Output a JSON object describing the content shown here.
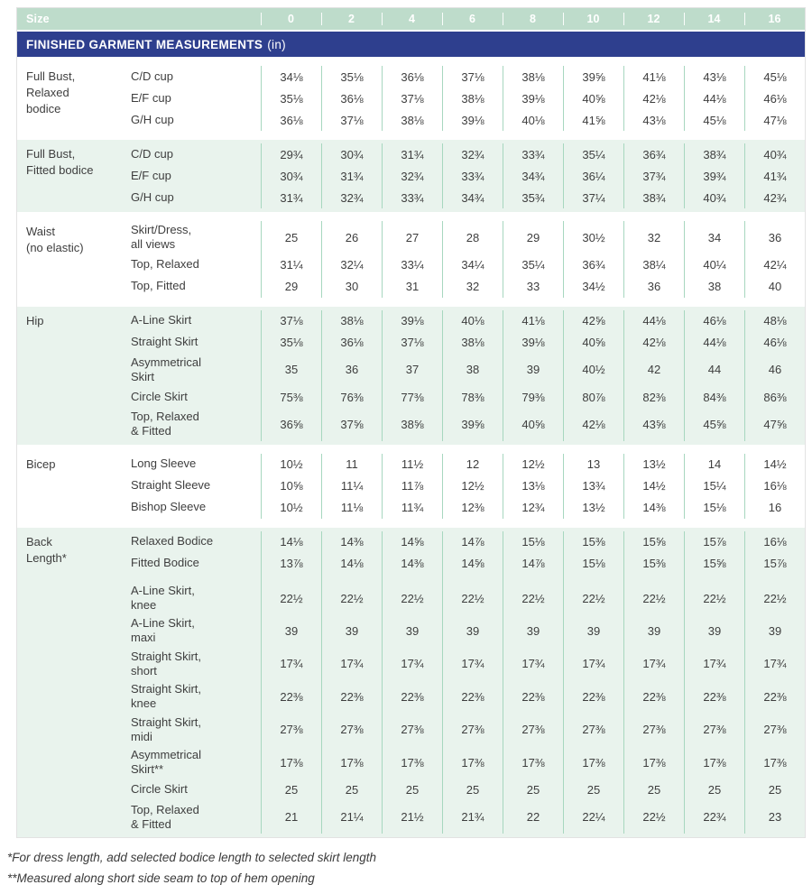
{
  "header": {
    "label": "Size",
    "sizes": [
      "0",
      "2",
      "4",
      "6",
      "8",
      "10",
      "12",
      "14",
      "16"
    ]
  },
  "banner": {
    "title": "FINISHED GARMENT MEASUREMENTS",
    "unit": "(in)"
  },
  "sections": [
    {
      "id": "full-bust-relaxed",
      "label": "Full Bust,\nRelaxed\nbodice",
      "tint": false,
      "rows": [
        {
          "label": "C/D cup",
          "values": [
            "34⅛",
            "35⅛",
            "36⅛",
            "37⅛",
            "38⅛",
            "39⅝",
            "41⅛",
            "43⅛",
            "45⅛"
          ]
        },
        {
          "label": "E/F cup",
          "values": [
            "35⅛",
            "36⅛",
            "37⅛",
            "38⅛",
            "39⅛",
            "40⅝",
            "42⅛",
            "44⅛",
            "46⅛"
          ]
        },
        {
          "label": "G/H cup",
          "values": [
            "36⅛",
            "37⅛",
            "38⅛",
            "39⅛",
            "40⅛",
            "41⅝",
            "43⅛",
            "45⅛",
            "47⅛"
          ]
        }
      ]
    },
    {
      "id": "full-bust-fitted",
      "label": "Full Bust,\nFitted bodice",
      "tint": true,
      "rows": [
        {
          "label": "C/D cup",
          "values": [
            "29¾",
            "30¾",
            "31¾",
            "32¾",
            "33¾",
            "35¼",
            "36¾",
            "38¾",
            "40¾"
          ]
        },
        {
          "label": "E/F cup",
          "values": [
            "30¾",
            "31¾",
            "32¾",
            "33¾",
            "34¾",
            "36¼",
            "37¾",
            "39¾",
            "41¾"
          ]
        },
        {
          "label": "G/H cup",
          "values": [
            "31¾",
            "32¾",
            "33¾",
            "34¾",
            "35¾",
            "37¼",
            "38¾",
            "40¾",
            "42¾"
          ]
        }
      ]
    },
    {
      "id": "waist",
      "label": "Waist\n(no elastic)",
      "tint": false,
      "rows": [
        {
          "label": "Skirt/Dress,\nall views",
          "values": [
            "25",
            "26",
            "27",
            "28",
            "29",
            "30½",
            "32",
            "34",
            "36"
          ]
        },
        {
          "label": "Top, Relaxed",
          "values": [
            "31¼",
            "32¼",
            "33¼",
            "34¼",
            "35¼",
            "36¾",
            "38¼",
            "40¼",
            "42¼"
          ]
        },
        {
          "label": "Top, Fitted",
          "values": [
            "29",
            "30",
            "31",
            "32",
            "33",
            "34½",
            "36",
            "38",
            "40"
          ]
        }
      ]
    },
    {
      "id": "hip",
      "label": "Hip",
      "tint": true,
      "rows": [
        {
          "label": "A-Line Skirt",
          "values": [
            "37⅛",
            "38⅛",
            "39⅛",
            "40⅛",
            "41⅛",
            "42⅝",
            "44⅛",
            "46⅛",
            "48⅛"
          ]
        },
        {
          "label": "Straight Skirt",
          "values": [
            "35⅛",
            "36⅛",
            "37⅛",
            "38⅛",
            "39⅛",
            "40⅝",
            "42⅛",
            "44⅛",
            "46⅛"
          ]
        },
        {
          "label": "Asymmetrical\nSkirt",
          "values": [
            "35",
            "36",
            "37",
            "38",
            "39",
            "40½",
            "42",
            "44",
            "46"
          ]
        },
        {
          "label": "Circle Skirt",
          "values": [
            "75⅜",
            "76⅜",
            "77⅜",
            "78⅜",
            "79⅜",
            "80⅞",
            "82⅜",
            "84⅜",
            "86⅜"
          ]
        },
        {
          "label": "Top, Relaxed\n& Fitted",
          "values": [
            "36⅝",
            "37⅝",
            "38⅝",
            "39⅝",
            "40⅝",
            "42⅛",
            "43⅝",
            "45⅝",
            "47⅝"
          ]
        }
      ]
    },
    {
      "id": "bicep",
      "label": "Bicep",
      "tint": false,
      "rows": [
        {
          "label": "Long Sleeve",
          "values": [
            "10½",
            "11",
            "11½",
            "12",
            "12½",
            "13",
            "13½",
            "14",
            "14½"
          ]
        },
        {
          "label": "Straight Sleeve",
          "values": [
            "10⅝",
            "11¼",
            "11⅞",
            "12½",
            "13⅛",
            "13¾",
            "14½",
            "15¼",
            "16⅛"
          ]
        },
        {
          "label": "Bishop Sleeve",
          "values": [
            "10½",
            "11⅛",
            "11¾",
            "12⅜",
            "12¾",
            "13½",
            "14⅜",
            "15⅛",
            "16"
          ]
        }
      ]
    },
    {
      "id": "back-length",
      "label": "Back\nLength*",
      "tint": true,
      "rows": [
        {
          "label": "Relaxed Bodice",
          "values": [
            "14⅛",
            "14⅜",
            "14⅝",
            "14⅞",
            "15⅛",
            "15⅜",
            "15⅝",
            "15⅞",
            "16⅛"
          ]
        },
        {
          "label": "Fitted Bodice",
          "values": [
            "13⅞",
            "14⅛",
            "14⅜",
            "14⅝",
            "14⅞",
            "15⅛",
            "15⅜",
            "15⅝",
            "15⅞"
          ]
        },
        {
          "label": "A-Line Skirt,\nknee",
          "gap_before": true,
          "values": [
            "22½",
            "22½",
            "22½",
            "22½",
            "22½",
            "22½",
            "22½",
            "22½",
            "22½"
          ]
        },
        {
          "label": "A-Line Skirt,\nmaxi",
          "values": [
            "39",
            "39",
            "39",
            "39",
            "39",
            "39",
            "39",
            "39",
            "39"
          ]
        },
        {
          "label": "Straight Skirt,\nshort",
          "values": [
            "17¾",
            "17¾",
            "17¾",
            "17¾",
            "17¾",
            "17¾",
            "17¾",
            "17¾",
            "17¾"
          ]
        },
        {
          "label": "Straight Skirt,\nknee",
          "values": [
            "22⅜",
            "22⅜",
            "22⅜",
            "22⅜",
            "22⅜",
            "22⅜",
            "22⅜",
            "22⅜",
            "22⅜"
          ]
        },
        {
          "label": "Straight Skirt,\nmidi",
          "values": [
            "27⅜",
            "27⅜",
            "27⅜",
            "27⅜",
            "27⅜",
            "27⅜",
            "27⅜",
            "27⅜",
            "27⅜"
          ]
        },
        {
          "label": "Asymmetrical\nSkirt**",
          "values": [
            "17⅜",
            "17⅜",
            "17⅜",
            "17⅜",
            "17⅜",
            "17⅜",
            "17⅜",
            "17⅜",
            "17⅜"
          ]
        },
        {
          "label": "Circle Skirt",
          "values": [
            "25",
            "25",
            "25",
            "25",
            "25",
            "25",
            "25",
            "25",
            "25"
          ]
        },
        {
          "label": "Top, Relaxed\n& Fitted",
          "values": [
            "21",
            "21¼",
            "21½",
            "21¾",
            "22",
            "22¼",
            "22½",
            "22¾",
            "23"
          ]
        }
      ]
    }
  ],
  "footnotes": [
    "*For dress length, add selected bodice length to selected skirt length",
    "**Measured along short side seam to top of hem opening"
  ],
  "colors": {
    "header_green": "#BEDCCB",
    "banner_blue": "#2E3F8E",
    "tint_green": "#E9F3ED",
    "divider_green": "#A7D7BF",
    "text": "#3E3E3E"
  }
}
